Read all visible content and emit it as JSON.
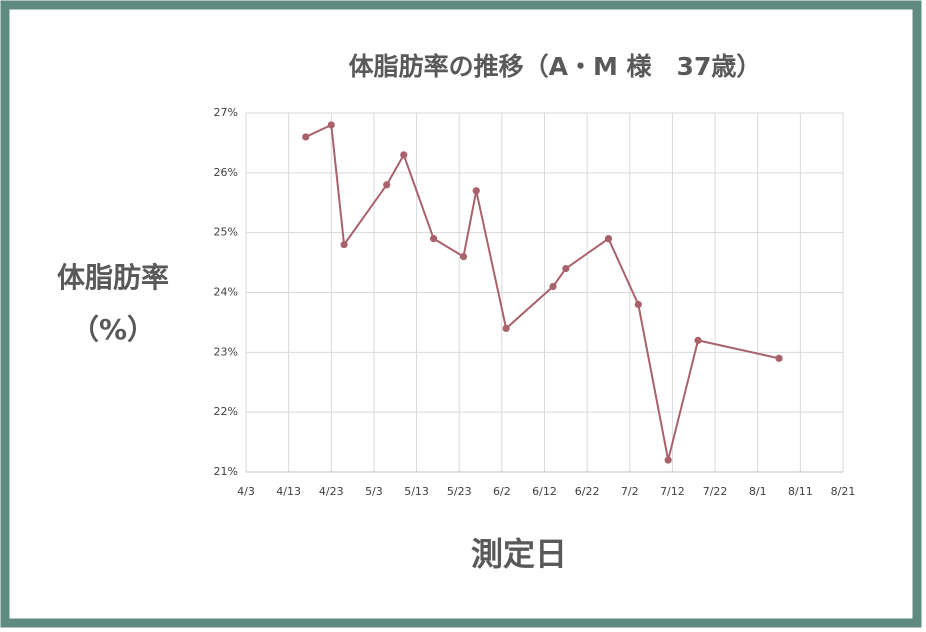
{
  "chart_data": {
    "type": "line",
    "title": "体脂肪率の推移（A・M 様　37歳）",
    "x_label": "測定日",
    "y_label": "体脂肪率",
    "y_label_unit": "（%）",
    "x": [
      "4/17",
      "4/23",
      "4/26",
      "5/6",
      "5/10",
      "5/17",
      "5/24",
      "5/27",
      "6/3",
      "6/14",
      "6/17",
      "6/27",
      "7/4",
      "7/11",
      "7/18",
      "8/6"
    ],
    "series": [
      {
        "name": "体脂肪率",
        "color": "#a9626b",
        "values": [
          26.6,
          26.8,
          24.8,
          25.8,
          26.3,
          24.9,
          24.6,
          25.7,
          23.4,
          24.1,
          24.4,
          24.9,
          23.8,
          21.2,
          23.2,
          22.9
        ]
      }
    ],
    "xlim": [
      "4/3",
      "8/21"
    ],
    "xticks": [
      "4/3",
      "4/13",
      "4/23",
      "5/3",
      "5/13",
      "5/23",
      "6/2",
      "6/12",
      "6/22",
      "7/2",
      "7/12",
      "7/22",
      "8/1",
      "8/11",
      "8/21"
    ],
    "ylim": [
      21,
      27
    ],
    "yticks": [
      {
        "value": 21,
        "label": "21%"
      },
      {
        "value": 22,
        "label": "22%"
      },
      {
        "value": 23,
        "label": "23%"
      },
      {
        "value": 24,
        "label": "24%"
      },
      {
        "value": 25,
        "label": "25%"
      },
      {
        "value": 26,
        "label": "26%"
      },
      {
        "value": 27,
        "label": "27%"
      }
    ],
    "grid": true
  }
}
